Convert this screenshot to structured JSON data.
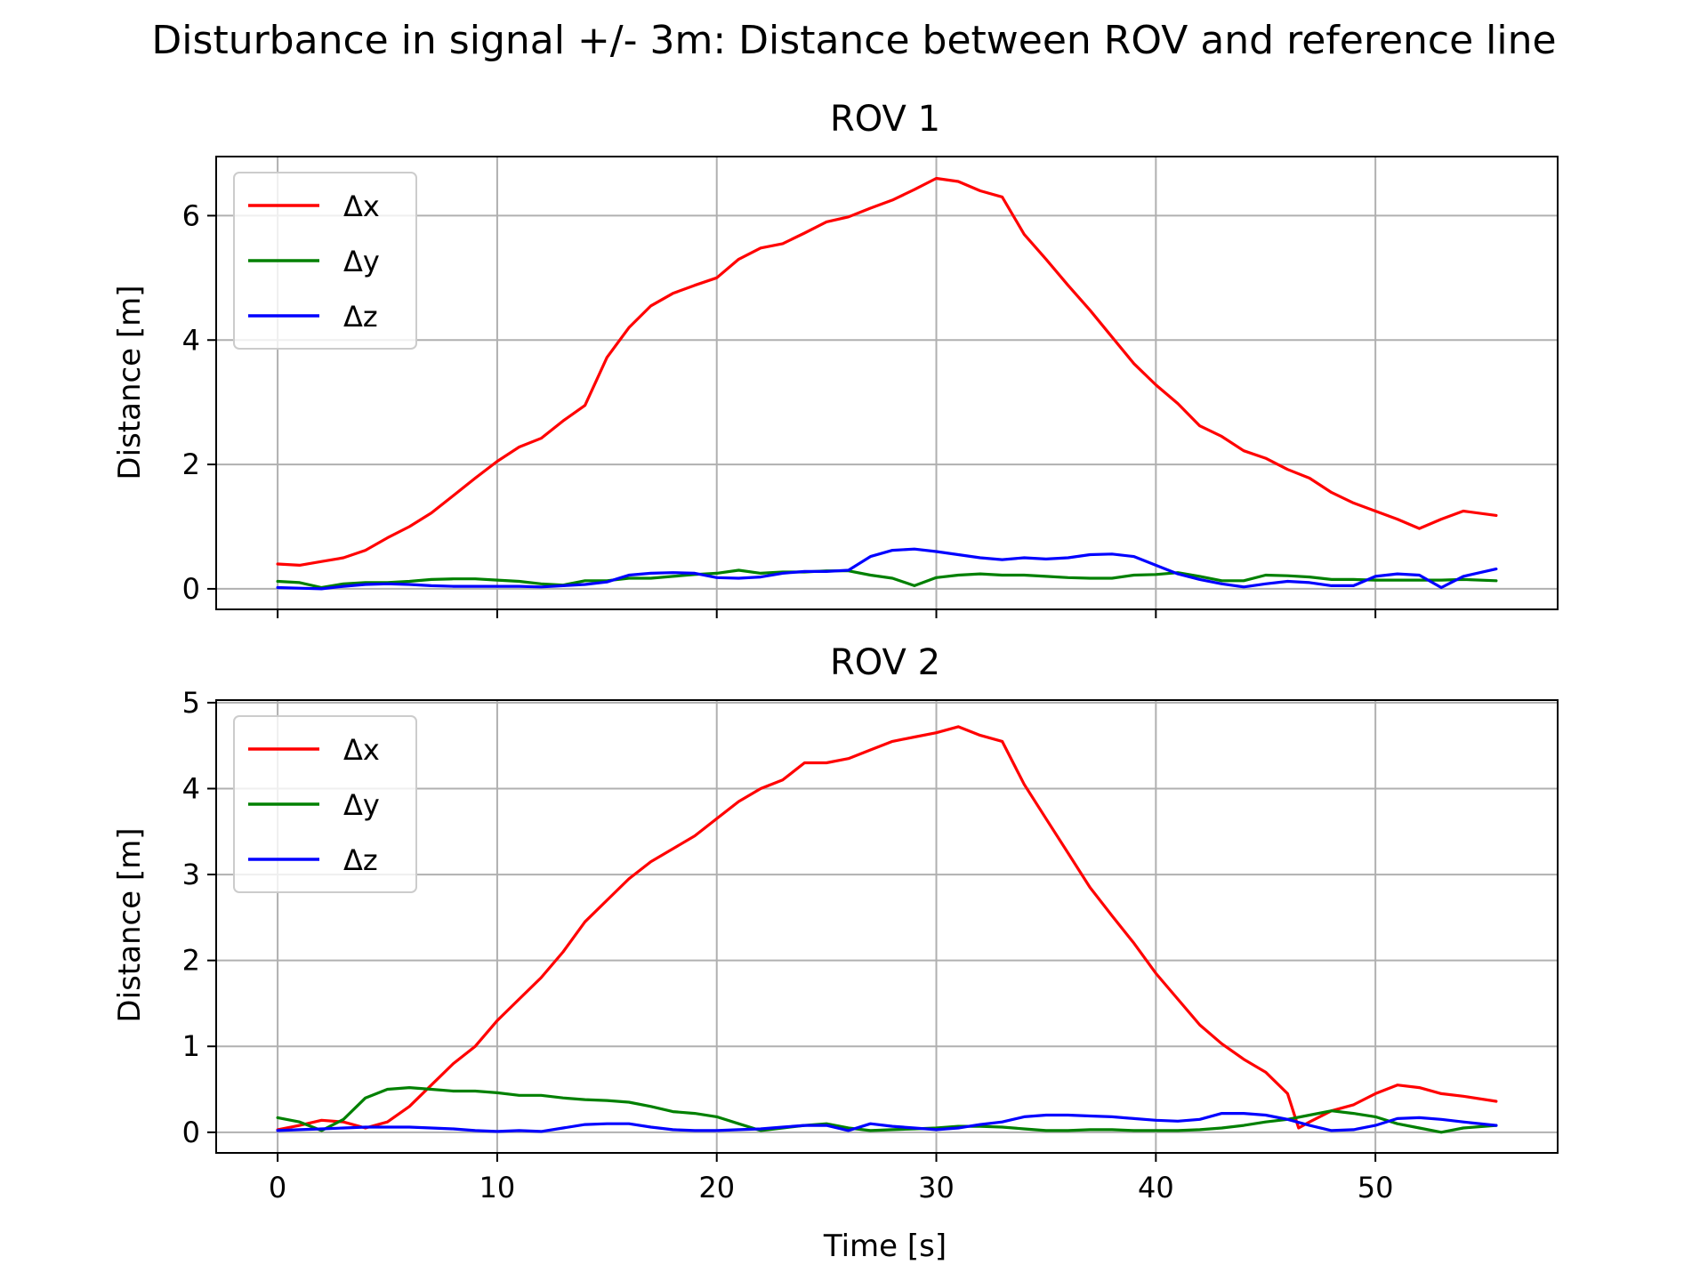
{
  "figure": {
    "suptitle": "Disturbance in signal +/- 3m: Distance between ROV and reference line",
    "xlabel": "Time [s]"
  },
  "colors": {
    "dx": "#ff0000",
    "dy": "#008000",
    "dz": "#0000ff",
    "grid": "#b0b0b0",
    "axis": "#000000"
  },
  "chart_data": [
    {
      "type": "line",
      "title": "ROV 1",
      "xlabel": "",
      "ylabel": "Distance [m]",
      "xlim": [
        -2.8,
        58.3
      ],
      "ylim": [
        -0.33,
        6.95
      ],
      "xticks": [
        0,
        10,
        20,
        30,
        40,
        50
      ],
      "xtick_labels_visible": false,
      "yticks": [
        0,
        2,
        4,
        6
      ],
      "grid": true,
      "legend": {
        "placement": "top-left",
        "entries": [
          "Δx",
          "Δy",
          "Δz"
        ]
      },
      "series": [
        {
          "name": "Δx",
          "color": "#ff0000",
          "x": [
            0,
            1,
            2,
            3,
            4,
            5,
            6,
            7,
            8,
            9,
            10,
            11,
            12,
            13,
            14,
            15,
            16,
            17,
            18,
            19,
            20,
            21,
            22,
            23,
            24,
            25,
            26,
            27,
            28,
            29,
            30,
            31,
            32,
            33,
            34,
            35,
            36,
            37,
            38,
            39,
            40,
            41,
            42,
            43,
            44,
            45,
            46,
            47,
            48,
            49,
            50,
            51,
            52,
            53,
            54,
            55.5
          ],
          "y": [
            0.4,
            0.38,
            0.44,
            0.5,
            0.62,
            0.82,
            1.0,
            1.22,
            1.5,
            1.78,
            2.05,
            2.28,
            2.42,
            2.7,
            2.95,
            3.72,
            4.2,
            4.55,
            4.75,
            4.88,
            5.0,
            5.3,
            5.48,
            5.55,
            5.72,
            5.9,
            5.98,
            6.12,
            6.25,
            6.42,
            6.6,
            6.55,
            6.4,
            6.3,
            5.7,
            5.3,
            4.88,
            4.48,
            4.05,
            3.62,
            3.28,
            2.98,
            2.62,
            2.45,
            2.22,
            2.1,
            1.92,
            1.78,
            1.55,
            1.38,
            1.25,
            1.12,
            0.97,
            1.12,
            1.25,
            1.18
          ]
        },
        {
          "name": "Δy",
          "color": "#008000",
          "x": [
            0,
            1,
            2,
            3,
            4,
            5,
            6,
            7,
            8,
            9,
            10,
            11,
            12,
            13,
            14,
            15,
            16,
            17,
            18,
            19,
            20,
            21,
            22,
            23,
            24,
            25,
            26,
            27,
            28,
            29,
            30,
            31,
            32,
            33,
            34,
            35,
            36,
            37,
            38,
            39,
            40,
            41,
            42,
            43,
            44,
            45,
            46,
            47,
            48,
            49,
            50,
            51,
            52,
            53,
            54,
            55.5
          ],
          "y": [
            0.12,
            0.1,
            0.02,
            0.08,
            0.1,
            0.1,
            0.12,
            0.15,
            0.16,
            0.16,
            0.14,
            0.12,
            0.08,
            0.06,
            0.13,
            0.13,
            0.17,
            0.17,
            0.2,
            0.23,
            0.25,
            0.3,
            0.25,
            0.27,
            0.27,
            0.29,
            0.29,
            0.22,
            0.17,
            0.05,
            0.18,
            0.22,
            0.24,
            0.22,
            0.22,
            0.2,
            0.18,
            0.17,
            0.17,
            0.22,
            0.23,
            0.26,
            0.2,
            0.13,
            0.13,
            0.22,
            0.21,
            0.19,
            0.15,
            0.15,
            0.14,
            0.14,
            0.14,
            0.14,
            0.15,
            0.13
          ]
        },
        {
          "name": "Δz",
          "color": "#0000ff",
          "x": [
            0,
            1,
            2,
            3,
            4,
            5,
            6,
            7,
            8,
            9,
            10,
            11,
            12,
            13,
            14,
            15,
            16,
            17,
            18,
            19,
            20,
            21,
            22,
            23,
            24,
            25,
            26,
            27,
            28,
            29,
            30,
            31,
            32,
            33,
            34,
            35,
            36,
            37,
            38,
            39,
            40,
            41,
            42,
            43,
            44,
            45,
            46,
            47,
            48,
            49,
            50,
            51,
            52,
            53,
            54,
            55.5
          ],
          "y": [
            0.02,
            0.01,
            0.0,
            0.04,
            0.07,
            0.08,
            0.07,
            0.05,
            0.04,
            0.04,
            0.04,
            0.04,
            0.03,
            0.05,
            0.07,
            0.11,
            0.22,
            0.25,
            0.26,
            0.25,
            0.18,
            0.17,
            0.19,
            0.25,
            0.28,
            0.28,
            0.3,
            0.52,
            0.62,
            0.64,
            0.6,
            0.55,
            0.5,
            0.47,
            0.5,
            0.48,
            0.5,
            0.55,
            0.56,
            0.52,
            0.38,
            0.24,
            0.15,
            0.08,
            0.03,
            0.08,
            0.12,
            0.1,
            0.05,
            0.05,
            0.2,
            0.24,
            0.22,
            0.02,
            0.2,
            0.32
          ]
        }
      ]
    },
    {
      "type": "line",
      "title": "ROV 2",
      "xlabel": "Time [s]",
      "ylabel": "Distance [m]",
      "xlim": [
        -2.8,
        58.3
      ],
      "ylim": [
        -0.24,
        5.03
      ],
      "xticks": [
        0,
        10,
        20,
        30,
        40,
        50
      ],
      "xtick_labels_visible": true,
      "yticks": [
        0,
        1,
        2,
        3,
        4,
        5
      ],
      "grid": true,
      "legend": {
        "placement": "top-left",
        "entries": [
          "Δx",
          "Δy",
          "Δz"
        ]
      },
      "series": [
        {
          "name": "Δx",
          "color": "#ff0000",
          "x": [
            0,
            1,
            2,
            3,
            4,
            5,
            6,
            7,
            8,
            9,
            10,
            11,
            12,
            13,
            14,
            15,
            16,
            17,
            18,
            19,
            20,
            21,
            22,
            23,
            24,
            25,
            26,
            27,
            28,
            29,
            30,
            31,
            32,
            33,
            34,
            35,
            36,
            37,
            38,
            39,
            40,
            41,
            42,
            43,
            44,
            45,
            46,
            46.5,
            47,
            48,
            49,
            50,
            51,
            52,
            53,
            54,
            55.5
          ],
          "y": [
            0.03,
            0.08,
            0.14,
            0.12,
            0.05,
            0.12,
            0.3,
            0.55,
            0.8,
            1.0,
            1.3,
            1.55,
            1.8,
            2.1,
            2.45,
            2.7,
            2.95,
            3.15,
            3.3,
            3.45,
            3.65,
            3.85,
            4.0,
            4.1,
            4.3,
            4.3,
            4.35,
            4.45,
            4.55,
            4.6,
            4.65,
            4.72,
            4.62,
            4.55,
            4.05,
            3.65,
            3.25,
            2.85,
            2.52,
            2.2,
            1.85,
            1.55,
            1.25,
            1.03,
            0.85,
            0.7,
            0.45,
            0.05,
            0.12,
            0.25,
            0.32,
            0.45,
            0.55,
            0.52,
            0.45,
            0.42,
            0.36
          ]
        },
        {
          "name": "Δy",
          "color": "#008000",
          "x": [
            0,
            1,
            2,
            3,
            4,
            5,
            6,
            7,
            8,
            9,
            10,
            11,
            12,
            13,
            14,
            15,
            16,
            17,
            18,
            19,
            20,
            21,
            22,
            23,
            24,
            25,
            26,
            27,
            28,
            29,
            30,
            31,
            32,
            33,
            34,
            35,
            36,
            37,
            38,
            39,
            40,
            41,
            42,
            43,
            44,
            45,
            46,
            47,
            48,
            49,
            50,
            51,
            52,
            53,
            54,
            55.5
          ],
          "y": [
            0.17,
            0.12,
            0.02,
            0.15,
            0.4,
            0.5,
            0.52,
            0.5,
            0.48,
            0.48,
            0.46,
            0.43,
            0.43,
            0.4,
            0.38,
            0.37,
            0.35,
            0.3,
            0.24,
            0.22,
            0.18,
            0.1,
            0.02,
            0.05,
            0.08,
            0.1,
            0.05,
            0.02,
            0.03,
            0.04,
            0.05,
            0.07,
            0.07,
            0.06,
            0.04,
            0.02,
            0.02,
            0.03,
            0.03,
            0.02,
            0.02,
            0.02,
            0.03,
            0.05,
            0.08,
            0.12,
            0.15,
            0.2,
            0.25,
            0.22,
            0.18,
            0.1,
            0.05,
            0.0,
            0.05,
            0.08
          ]
        },
        {
          "name": "Δz",
          "color": "#0000ff",
          "x": [
            0,
            1,
            2,
            3,
            4,
            5,
            6,
            7,
            8,
            9,
            10,
            11,
            12,
            13,
            14,
            15,
            16,
            17,
            18,
            19,
            20,
            21,
            22,
            23,
            24,
            25,
            26,
            27,
            28,
            29,
            30,
            31,
            32,
            33,
            34,
            35,
            36,
            37,
            38,
            39,
            40,
            41,
            42,
            43,
            44,
            45,
            46,
            47,
            48,
            49,
            50,
            51,
            52,
            53,
            54,
            55.5
          ],
          "y": [
            0.02,
            0.03,
            0.04,
            0.05,
            0.06,
            0.06,
            0.06,
            0.05,
            0.04,
            0.02,
            0.01,
            0.02,
            0.01,
            0.05,
            0.09,
            0.1,
            0.1,
            0.06,
            0.03,
            0.02,
            0.02,
            0.03,
            0.04,
            0.06,
            0.08,
            0.08,
            0.02,
            0.1,
            0.07,
            0.05,
            0.03,
            0.05,
            0.09,
            0.12,
            0.18,
            0.2,
            0.2,
            0.19,
            0.18,
            0.16,
            0.14,
            0.13,
            0.15,
            0.22,
            0.22,
            0.2,
            0.15,
            0.08,
            0.02,
            0.03,
            0.08,
            0.16,
            0.17,
            0.15,
            0.12,
            0.08
          ]
        }
      ]
    }
  ]
}
